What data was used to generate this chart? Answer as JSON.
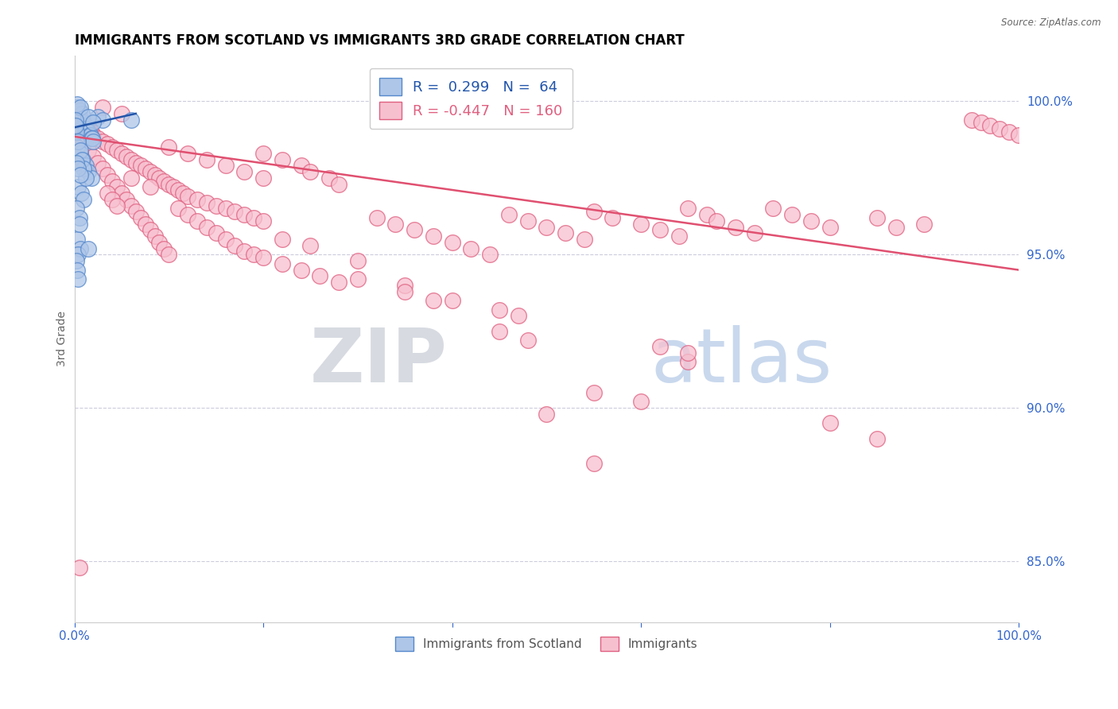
{
  "title": "IMMIGRANTS FROM SCOTLAND VS IMMIGRANTS 3RD GRADE CORRELATION CHART",
  "source": "Source: ZipAtlas.com",
  "ylabel": "3rd Grade",
  "right_yticks": [
    85.0,
    90.0,
    95.0,
    100.0
  ],
  "legend_blue_r": "0.299",
  "legend_blue_n": "64",
  "legend_pink_r": "-0.447",
  "legend_pink_n": "160",
  "blue_color": "#aec6e8",
  "blue_edge_color": "#5588cc",
  "pink_color": "#f7c0cf",
  "pink_edge_color": "#e06080",
  "blue_line_color": "#2255aa",
  "pink_line_color": "#e05070",
  "watermark_zip": "ZIP",
  "watermark_atlas": "atlas",
  "xlim": [
    0,
    100
  ],
  "ylim": [
    83.0,
    101.5
  ],
  "blue_scatter": [
    [
      0.2,
      99.6
    ],
    [
      0.3,
      99.5
    ],
    [
      0.4,
      99.5
    ],
    [
      0.5,
      99.5
    ],
    [
      0.6,
      99.4
    ],
    [
      0.7,
      99.4
    ],
    [
      0.8,
      99.3
    ],
    [
      0.9,
      99.3
    ],
    [
      1.0,
      99.2
    ],
    [
      1.1,
      99.2
    ],
    [
      1.2,
      99.1
    ],
    [
      1.3,
      99.1
    ],
    [
      1.4,
      99.0
    ],
    [
      1.5,
      99.0
    ],
    [
      1.6,
      98.9
    ],
    [
      1.7,
      98.9
    ],
    [
      1.8,
      98.8
    ],
    [
      1.9,
      98.8
    ],
    [
      2.0,
      98.7
    ],
    [
      0.2,
      99.8
    ],
    [
      0.5,
      99.7
    ],
    [
      0.8,
      99.6
    ],
    [
      2.5,
      99.5
    ],
    [
      3.0,
      99.4
    ],
    [
      0.3,
      98.5
    ],
    [
      0.6,
      98.3
    ],
    [
      0.9,
      98.1
    ],
    [
      1.2,
      97.9
    ],
    [
      1.5,
      97.7
    ],
    [
      1.8,
      97.5
    ],
    [
      0.4,
      97.2
    ],
    [
      0.7,
      97.0
    ],
    [
      1.0,
      96.8
    ],
    [
      0.2,
      96.5
    ],
    [
      0.5,
      96.2
    ],
    [
      0.3,
      95.5
    ],
    [
      0.6,
      95.2
    ],
    [
      0.4,
      95.0
    ],
    [
      0.2,
      94.8
    ],
    [
      0.3,
      94.5
    ],
    [
      0.4,
      94.2
    ],
    [
      1.5,
      95.2
    ],
    [
      0.5,
      96.0
    ],
    [
      6.0,
      99.4
    ],
    [
      0.2,
      99.0
    ],
    [
      0.4,
      98.7
    ],
    [
      0.6,
      98.4
    ],
    [
      0.8,
      98.1
    ],
    [
      1.0,
      97.8
    ],
    [
      1.2,
      97.5
    ],
    [
      0.3,
      99.9
    ],
    [
      0.6,
      99.8
    ],
    [
      1.5,
      99.5
    ],
    [
      2.0,
      99.3
    ],
    [
      0.2,
      98.0
    ],
    [
      0.4,
      97.8
    ],
    [
      0.6,
      97.6
    ],
    [
      0.1,
      99.4
    ],
    [
      0.15,
      99.2
    ]
  ],
  "pink_scatter": [
    [
      0.3,
      99.5
    ],
    [
      0.5,
      99.4
    ],
    [
      0.8,
      99.4
    ],
    [
      1.0,
      99.3
    ],
    [
      1.2,
      99.2
    ],
    [
      1.5,
      99.1
    ],
    [
      1.8,
      99.0
    ],
    [
      2.0,
      98.9
    ],
    [
      2.5,
      98.8
    ],
    [
      3.0,
      98.7
    ],
    [
      3.5,
      98.6
    ],
    [
      4.0,
      98.5
    ],
    [
      4.5,
      98.4
    ],
    [
      5.0,
      98.3
    ],
    [
      5.5,
      98.2
    ],
    [
      6.0,
      98.1
    ],
    [
      6.5,
      98.0
    ],
    [
      7.0,
      97.9
    ],
    [
      7.5,
      97.8
    ],
    [
      8.0,
      97.7
    ],
    [
      8.5,
      97.6
    ],
    [
      9.0,
      97.5
    ],
    [
      9.5,
      97.4
    ],
    [
      10.0,
      97.3
    ],
    [
      10.5,
      97.2
    ],
    [
      11.0,
      97.1
    ],
    [
      11.5,
      97.0
    ],
    [
      12.0,
      96.9
    ],
    [
      13.0,
      96.8
    ],
    [
      14.0,
      96.7
    ],
    [
      15.0,
      96.6
    ],
    [
      16.0,
      96.5
    ],
    [
      17.0,
      96.4
    ],
    [
      18.0,
      96.3
    ],
    [
      19.0,
      96.2
    ],
    [
      20.0,
      96.1
    ],
    [
      0.5,
      99.0
    ],
    [
      0.8,
      98.8
    ],
    [
      1.0,
      98.6
    ],
    [
      1.5,
      98.4
    ],
    [
      2.0,
      98.2
    ],
    [
      2.5,
      98.0
    ],
    [
      3.0,
      97.8
    ],
    [
      3.5,
      97.6
    ],
    [
      4.0,
      97.4
    ],
    [
      4.5,
      97.2
    ],
    [
      5.0,
      97.0
    ],
    [
      5.5,
      96.8
    ],
    [
      6.0,
      96.6
    ],
    [
      6.5,
      96.4
    ],
    [
      7.0,
      96.2
    ],
    [
      7.5,
      96.0
    ],
    [
      8.0,
      95.8
    ],
    [
      8.5,
      95.6
    ],
    [
      9.0,
      95.4
    ],
    [
      9.5,
      95.2
    ],
    [
      10.0,
      95.0
    ],
    [
      11.0,
      96.5
    ],
    [
      12.0,
      96.3
    ],
    [
      13.0,
      96.1
    ],
    [
      14.0,
      95.9
    ],
    [
      15.0,
      95.7
    ],
    [
      16.0,
      95.5
    ],
    [
      17.0,
      95.3
    ],
    [
      18.0,
      95.1
    ],
    [
      19.0,
      95.0
    ],
    [
      20.0,
      94.9
    ],
    [
      22.0,
      94.7
    ],
    [
      24.0,
      94.5
    ],
    [
      26.0,
      94.3
    ],
    [
      28.0,
      94.1
    ],
    [
      30.0,
      94.8
    ],
    [
      32.0,
      96.2
    ],
    [
      34.0,
      96.0
    ],
    [
      36.0,
      95.8
    ],
    [
      38.0,
      95.6
    ],
    [
      40.0,
      95.4
    ],
    [
      42.0,
      95.2
    ],
    [
      44.0,
      95.0
    ],
    [
      46.0,
      96.3
    ],
    [
      48.0,
      96.1
    ],
    [
      50.0,
      95.9
    ],
    [
      52.0,
      95.7
    ],
    [
      54.0,
      95.5
    ],
    [
      55.0,
      96.4
    ],
    [
      57.0,
      96.2
    ],
    [
      60.0,
      96.0
    ],
    [
      62.0,
      95.8
    ],
    [
      64.0,
      95.6
    ],
    [
      65.0,
      96.5
    ],
    [
      67.0,
      96.3
    ],
    [
      68.0,
      96.1
    ],
    [
      70.0,
      95.9
    ],
    [
      72.0,
      95.7
    ],
    [
      74.0,
      96.5
    ],
    [
      76.0,
      96.3
    ],
    [
      78.0,
      96.1
    ],
    [
      80.0,
      95.9
    ],
    [
      85.0,
      96.2
    ],
    [
      87.0,
      95.9
    ],
    [
      90.0,
      96.0
    ],
    [
      95.0,
      99.4
    ],
    [
      96.0,
      99.3
    ],
    [
      97.0,
      99.2
    ],
    [
      98.0,
      99.1
    ],
    [
      99.0,
      99.0
    ],
    [
      100.0,
      98.9
    ],
    [
      60.0,
      90.2
    ],
    [
      65.0,
      91.5
    ],
    [
      50.0,
      89.8
    ],
    [
      55.0,
      90.5
    ],
    [
      80.0,
      89.5
    ],
    [
      85.0,
      89.0
    ],
    [
      40.0,
      93.5
    ],
    [
      45.0,
      93.2
    ],
    [
      47.0,
      93.0
    ],
    [
      30.0,
      94.2
    ],
    [
      35.0,
      94.0
    ],
    [
      22.0,
      95.5
    ],
    [
      25.0,
      95.3
    ],
    [
      3.5,
      97.0
    ],
    [
      4.0,
      96.8
    ],
    [
      4.5,
      96.6
    ],
    [
      20.0,
      98.3
    ],
    [
      22.0,
      98.1
    ],
    [
      24.0,
      97.9
    ],
    [
      25.0,
      97.7
    ],
    [
      27.0,
      97.5
    ],
    [
      28.0,
      97.3
    ],
    [
      10.0,
      98.5
    ],
    [
      12.0,
      98.3
    ],
    [
      14.0,
      98.1
    ],
    [
      16.0,
      97.9
    ],
    [
      18.0,
      97.7
    ],
    [
      20.0,
      97.5
    ],
    [
      45.0,
      92.5
    ],
    [
      48.0,
      92.2
    ],
    [
      55.0,
      88.2
    ],
    [
      0.5,
      84.8
    ],
    [
      35.0,
      93.8
    ],
    [
      38.0,
      93.5
    ],
    [
      6.0,
      97.5
    ],
    [
      8.0,
      97.2
    ],
    [
      62.0,
      92.0
    ],
    [
      65.0,
      91.8
    ],
    [
      3.0,
      99.8
    ],
    [
      5.0,
      99.6
    ]
  ],
  "blue_trendline": [
    [
      0.0,
      99.15
    ],
    [
      6.5,
      99.6
    ]
  ],
  "pink_trendline": [
    [
      0.0,
      98.85
    ],
    [
      100.0,
      94.5
    ]
  ]
}
